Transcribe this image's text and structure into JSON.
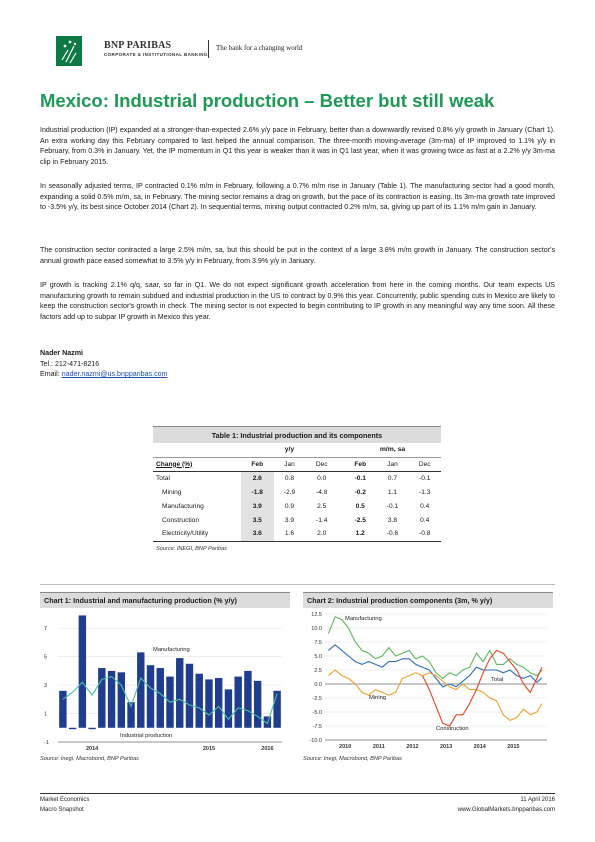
{
  "header": {
    "brand": "BNP PARIBAS",
    "division": "CORPORATE & INSTITUTIONAL BANKING",
    "tagline": "The bank for a changing world"
  },
  "title": "Mexico: Industrial production – Better but still weak",
  "paragraphs": {
    "p1": "Industrial production (IP) expanded at a stronger-than-expected 2.6% y/y pace in February, better than a downwardly revised 0.8% y/y growth in January (Chart 1). An extra working day this February compared to last helped the annual comparison. The three-month moving-average (3m-ma) of IP improved to 1.1% y/y in February, from 0.3% in January. Yet, the IP momentum in Q1 this year is weaker than it was in Q1 last year, when it was growing twice as fast at a 2.2% y/y 3m-ma clip in February 2015.",
    "p2": "In seasonally adjusted terms, IP contracted 0.1% m/m in February, following a 0.7% m/m rise in January (Table 1). The manufacturing sector had a good month, expanding a solid 0.5% m/m, sa, in February. The mining sector remains a drag on growth, but the pace of its contraction is easing. Its 3m-ma growth rate improved to -3.5% y/y, its best since October 2014 (Chart 2). In sequential terms, mining output contracted 0.2% m/m, sa, giving up part of its 1.1% m/m gain in January.",
    "p3": "The construction sector contracted a large 2.5% m/m, sa, but this should be put in the context of a large 3.8% m/m growth in January. The construction sector's annual growth pace eased somewhat to 3.5% y/y in February, from 3.9% y/y in January.",
    "p4": "IP growth is tracking 2.1% q/q, saar, so far in Q1. We do not expect significant growth acceleration from here in the coming months. Our team expects US manufacturing growth to remain subdued and industrial production in the US to contract by 0.9% this year. Concurrently, public spending cuts in Mexico are likely to keep the construction sector's growth in check. The mining sector is not expected to begin contributing to IP growth in any meaningful way any time soon. All these factors add up to subpar IP growth in Mexico this year."
  },
  "author": {
    "name": "Nader Nazmi",
    "tel": "Tel.: 212-471-8216",
    "email_label": "Email: ",
    "email": "nader.nazmi@us.bnpparibas.com"
  },
  "table": {
    "title": "Table 1: Industrial production and its components",
    "group_yy": "y/y",
    "group_mm": "m/m, sa",
    "col_header": "Change (%)",
    "cols": [
      "Feb",
      "Jan",
      "Dec",
      "Feb",
      "Jan",
      "Dec"
    ],
    "rows": [
      {
        "label": "Total",
        "vals": [
          "2.6",
          "0.8",
          "0.0",
          "-0.1",
          "0.7",
          "-0.1"
        ]
      },
      {
        "label": "Mining",
        "vals": [
          "-1.8",
          "-2.9",
          "-4.8",
          "-0.2",
          "1.1",
          "-1.3"
        ]
      },
      {
        "label": "Manufacturing",
        "vals": [
          "3.9",
          "0.9",
          "2.5",
          "0.5",
          "-0.1",
          "0.4"
        ]
      },
      {
        "label": "Construction",
        "vals": [
          "3.5",
          "3.9",
          "-1.4",
          "-2.5",
          "3.8",
          "0.4"
        ]
      },
      {
        "label": "Electricity/Utility",
        "vals": [
          "3.6",
          "1.6",
          "2.0",
          "1.2",
          "-0.6",
          "-0.8"
        ]
      }
    ],
    "source": "Source: INEGI, BNP Paribas"
  },
  "chart1": {
    "title": "Chart 1: Industrial and manufacturing production (% y/y)",
    "source": "Source: Inegi, Macrobond, BNP Paribas"
  },
  "chart2": {
    "title": "Chart 2: Industrial production components (3m, % y/y)",
    "source": "Source: Inegi, Macrobond, BNP Paribas"
  },
  "chart_data": [
    {
      "type": "bar",
      "title": "Chart 1: Industrial and manufacturing production (% y/y)",
      "ylim": [
        -1,
        8
      ],
      "yticks": [
        -1,
        1,
        3,
        5,
        7
      ],
      "x_tick_labels": [
        "2014",
        "2015",
        "2016"
      ],
      "series": [
        {
          "name": "Industrial production",
          "type": "bar",
          "color": "#1f3c8f",
          "values": [
            2.6,
            -0.1,
            7.9,
            -0.1,
            4.2,
            4.0,
            3.9,
            1.8,
            5.3,
            4.4,
            4.2,
            3.6,
            4.9,
            4.5,
            3.8,
            3.4,
            3.5,
            2.7,
            3.6,
            4.0,
            3.3,
            0.8,
            2.6
          ]
        },
        {
          "name": "Manufacturing",
          "type": "line",
          "color": "#4bc0a0",
          "values": [
            2.0,
            2.5,
            3.2,
            2.3,
            3.4,
            3.6,
            3.0,
            1.5,
            3.5,
            2.8,
            2.4,
            1.8,
            2.0,
            1.6,
            1.4,
            0.9,
            1.5,
            0.6,
            1.4,
            1.2,
            0.8,
            0.3,
            2.4
          ]
        }
      ],
      "annotations": [
        "Manufacturing",
        "Industrial production"
      ]
    },
    {
      "type": "line",
      "title": "Chart 2: Industrial production components (3m, % y/y)",
      "ylim": [
        -10,
        12.5
      ],
      "yticks": [
        12.5,
        10.0,
        7.5,
        5.0,
        2.5,
        0.0,
        -2.5,
        -5.0,
        -7.5,
        -10.0
      ],
      "x_tick_labels": [
        "2010",
        "2011",
        "2012",
        "2013",
        "2014",
        "2015"
      ],
      "series": [
        {
          "name": "Manufacturing",
          "color": "#5cb85c",
          "x": [
            2009.8,
            2010.0,
            2010.2,
            2010.4,
            2010.6,
            2010.8,
            2011.0,
            2011.2,
            2011.4,
            2011.6,
            2011.8,
            2012.0,
            2012.2,
            2012.4,
            2012.6,
            2012.8,
            2013.0,
            2013.2,
            2013.4,
            2013.6,
            2013.8,
            2014.0,
            2014.2,
            2014.4,
            2014.6,
            2014.8,
            2015.0,
            2015.2,
            2015.4,
            2015.6,
            2015.8,
            2016.0,
            2016.15
          ],
          "values": [
            9.0,
            12.0,
            11.5,
            10.0,
            7.5,
            6.0,
            5.5,
            4.5,
            5.0,
            6.5,
            5.0,
            5.5,
            6.0,
            4.5,
            5.0,
            4.0,
            2.0,
            1.0,
            2.0,
            1.5,
            2.5,
            3.0,
            5.5,
            4.0,
            6.0,
            3.5,
            3.5,
            4.5,
            3.5,
            3.0,
            2.0,
            1.5,
            2.5
          ]
        },
        {
          "name": "Total",
          "color": "#2c6fb8",
          "x": [
            2009.8,
            2010.0,
            2010.2,
            2010.4,
            2010.6,
            2010.8,
            2011.0,
            2011.2,
            2011.4,
            2011.6,
            2011.8,
            2012.0,
            2012.2,
            2012.4,
            2012.6,
            2012.8,
            2013.0,
            2013.2,
            2013.4,
            2013.6,
            2013.8,
            2014.0,
            2014.2,
            2014.4,
            2014.6,
            2014.8,
            2015.0,
            2015.2,
            2015.4,
            2015.6,
            2015.8,
            2016.0,
            2016.15
          ],
          "values": [
            6.0,
            7.0,
            6.0,
            5.0,
            4.0,
            3.5,
            4.0,
            3.5,
            3.0,
            4.0,
            4.0,
            4.5,
            4.5,
            3.5,
            3.0,
            2.5,
            1.0,
            -0.5,
            0.0,
            -0.5,
            0.5,
            1.5,
            3.0,
            2.5,
            2.5,
            2.5,
            2.0,
            2.5,
            1.5,
            1.0,
            1.5,
            0.3,
            1.1
          ]
        },
        {
          "name": "Mining",
          "color": "#f0a030",
          "x": [
            2009.8,
            2010.0,
            2010.2,
            2010.4,
            2010.6,
            2010.8,
            2011.0,
            2011.2,
            2011.4,
            2011.6,
            2011.8,
            2012.0,
            2012.2,
            2012.4,
            2012.6,
            2012.8,
            2013.0,
            2013.2,
            2013.4,
            2013.6,
            2013.8,
            2014.0,
            2014.2,
            2014.4,
            2014.6,
            2014.8,
            2015.0,
            2015.2,
            2015.4,
            2015.6,
            2015.8,
            2016.0,
            2016.15
          ],
          "values": [
            1.5,
            2.5,
            1.5,
            1.0,
            0.0,
            -1.5,
            -2.0,
            -1.0,
            -1.5,
            -2.0,
            -1.5,
            1.0,
            1.5,
            2.0,
            1.5,
            2.0,
            1.5,
            0.5,
            -0.5,
            -1.0,
            0.0,
            -1.0,
            -1.0,
            -1.5,
            -2.5,
            -3.0,
            -5.5,
            -6.5,
            -6.0,
            -4.5,
            -5.5,
            -5.0,
            -3.5
          ]
        },
        {
          "name": "Construction",
          "color": "#e8431e",
          "x": [
            2012.6,
            2012.8,
            2013.0,
            2013.2,
            2013.4,
            2013.6,
            2013.8,
            2014.0,
            2014.2,
            2014.4,
            2014.6,
            2014.8,
            2015.0,
            2015.2,
            2015.4,
            2015.6,
            2015.8,
            2016.0,
            2016.15
          ],
          "values": [
            1.5,
            -1.0,
            -4.0,
            -7.0,
            -7.5,
            -5.5,
            -5.5,
            -3.5,
            -1.0,
            2.0,
            4.5,
            6.0,
            5.5,
            4.0,
            2.5,
            0.0,
            -1.5,
            1.0,
            3.0
          ]
        }
      ],
      "annotations": [
        "Manufacturing",
        "Total",
        "Mining",
        "Construction"
      ]
    }
  ],
  "footer": {
    "left1": "Market Economics",
    "left2": "Macro Snapshot",
    "right1": "11 April 2016",
    "right2": "www.GlobalMarkets.bnpparibas.com"
  }
}
